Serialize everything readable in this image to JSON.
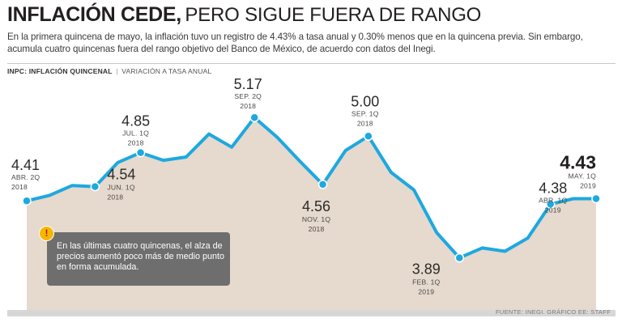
{
  "title": {
    "bold": "INFLACIÓN CEDE,",
    "light": "PERO SIGUE FUERA DE RANGO"
  },
  "subtitle": "En la primera quincena de mayo, la inflación tuvo un registro de 4.43% a tasa anual  y 0.30% menos que en la quincena previa. Sin embargo, acumula cuatro quincenas fuera del rango objetivo del Banco de México, de acuerdo con datos del Inegi.",
  "chart_header": {
    "bold": "INPC: INFLACIÓN QUINCENAL",
    "separator": "|",
    "light": "VARIACIÓN A TASA ANUAL"
  },
  "note": {
    "text": "En las últimas cuatro quincenas, el alza de precios aumentó poco más de medio punto en forma acumulada.",
    "icon": "!"
  },
  "source": "FUENTE: INEGI. GRÁFICO EE: STAFF",
  "colors": {
    "line": "#1ea8e0",
    "area": "#e6d9cd",
    "band": "#d7d7d7",
    "note": "#6e6e6e",
    "warning": "#f5b700"
  },
  "chart_data": {
    "type": "area",
    "title": "INPC: INFLACIÓN QUINCENAL",
    "subtitle": "VARIACIÓN A TASA ANUAL",
    "ylim": [
      3.4,
      5.6
    ],
    "values": [
      4.41,
      4.46,
      4.55,
      4.54,
      4.76,
      4.85,
      4.78,
      4.81,
      5.02,
      4.9,
      5.17,
      4.99,
      4.77,
      4.56,
      4.87,
      5.0,
      4.67,
      4.51,
      4.12,
      3.89,
      3.98,
      3.95,
      4.07,
      4.38,
      4.43,
      4.43
    ],
    "annotations": [
      {
        "index": 0,
        "value": "4.41",
        "period": "ABR. 2Q",
        "year": "2018"
      },
      {
        "index": 3,
        "value": "4.54",
        "period": "JUN. 1Q",
        "year": "2018"
      },
      {
        "index": 5,
        "value": "4.85",
        "period": "JUL. 1Q",
        "year": "2018"
      },
      {
        "index": 10,
        "value": "5.17",
        "period": "SEP. 2Q",
        "year": "2018"
      },
      {
        "index": 13,
        "value": "4.56",
        "period": "NOV. 1Q",
        "year": "2018"
      },
      {
        "index": 15,
        "value": "5.00",
        "period": "SEP. 1Q",
        "year": "2018"
      },
      {
        "index": 19,
        "value": "3.89",
        "period": "FEB. 1Q",
        "year": "2019"
      },
      {
        "index": 23,
        "value": "4.38",
        "period": "ABR. 1Q",
        "year": "2019"
      },
      {
        "index": 25,
        "value": "4.43",
        "period": "MAY. 1Q",
        "year": "2019"
      }
    ]
  }
}
